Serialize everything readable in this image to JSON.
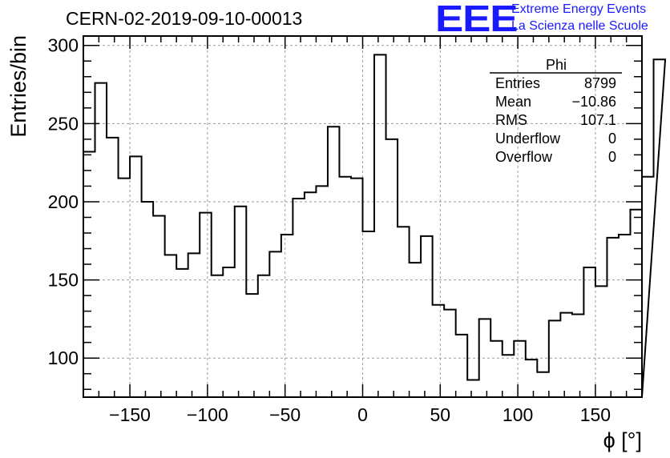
{
  "header": {
    "title": "CERN-02-2019-09-10-00013",
    "logo_text": "EEE",
    "logo_line1": "Extreme Energy Events",
    "logo_line2": "La Scienza nelle Scuole"
  },
  "stats": {
    "title": "Phi",
    "rows": [
      {
        "label": "Entries",
        "value": "8799"
      },
      {
        "label": "Mean",
        "value": "−10.86"
      },
      {
        "label": "RMS",
        "value": "107.1"
      },
      {
        "label": "Underflow",
        "value": "0"
      },
      {
        "label": "Overflow",
        "value": "0"
      }
    ]
  },
  "chart_data": {
    "type": "bar",
    "histogram_style": "step",
    "title": "CERN-02-2019-09-10-00013",
    "xlabel": "ϕ [°]",
    "ylabel": "Entries/bin",
    "xlim": [
      -180,
      180
    ],
    "ylim": [
      75,
      306
    ],
    "bin_width": 7.5,
    "grid": true,
    "xticks": [
      -150,
      -100,
      -50,
      0,
      50,
      100,
      150
    ],
    "xtick_labels": [
      "−150",
      "−100",
      "−50",
      "0",
      "50",
      "100",
      "150"
    ],
    "yticks": [
      100,
      150,
      200,
      250,
      300
    ],
    "ytick_labels": [
      "100",
      "150",
      "200",
      "250",
      "300"
    ],
    "values": [
      232,
      276,
      241,
      215,
      229,
      200,
      191,
      166,
      157,
      167,
      193,
      153,
      158,
      197,
      141,
      153,
      168,
      179,
      202,
      206,
      210,
      248,
      216,
      215,
      181,
      294,
      240,
      184,
      161,
      178,
      134,
      131,
      115,
      86,
      125,
      111,
      102,
      111,
      99,
      91,
      124,
      129,
      128,
      158,
      146,
      177,
      179,
      195,
      216,
      291
    ],
    "legend": "top-right"
  },
  "colors": {
    "accent": "#1a1aff",
    "line": "#000000",
    "grid": "#9a9a9a"
  }
}
